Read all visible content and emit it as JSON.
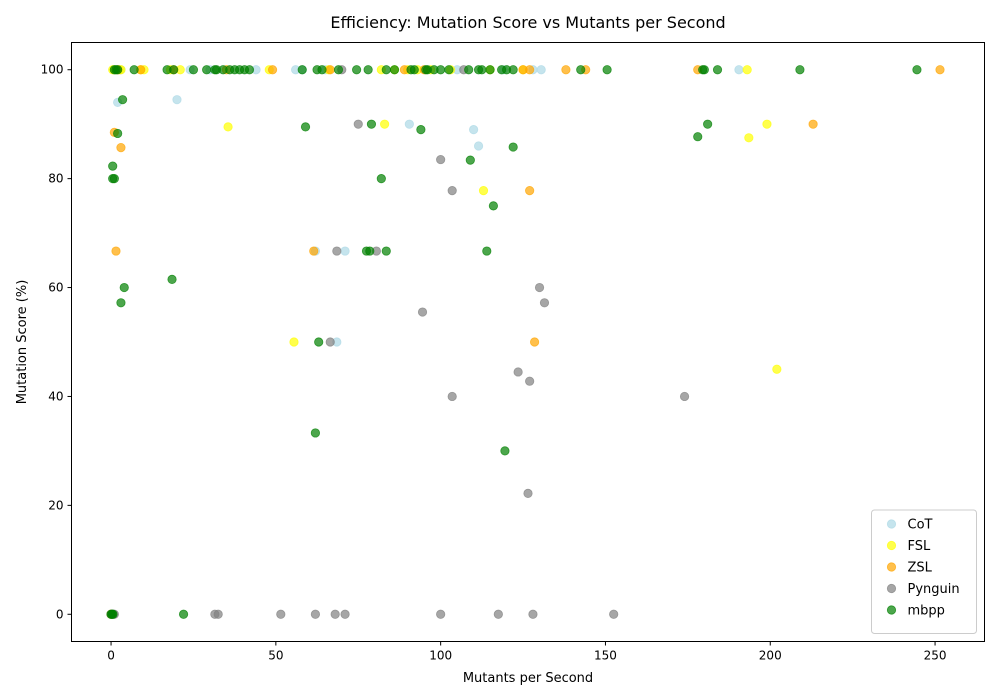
{
  "chart_data": {
    "type": "scatter",
    "title": "Efficiency: Mutation Score vs Mutants per Second",
    "xlabel": "Mutants per Second",
    "ylabel": "Mutation Score (%)",
    "xlim": [
      -12,
      265
    ],
    "ylim": [
      -5,
      105
    ],
    "x_ticks": [
      0,
      50,
      100,
      150,
      200,
      250
    ],
    "y_ticks": [
      0,
      20,
      40,
      60,
      80,
      100
    ],
    "grid": false,
    "legend_position": "bottom-right",
    "marker_alpha": 0.7,
    "series": [
      {
        "name": "CoT",
        "color": "#add8e6",
        "points": [
          [
            0,
            0
          ],
          [
            0.5,
            0
          ],
          [
            1,
            100
          ],
          [
            1.5,
            100
          ],
          [
            2,
            94
          ],
          [
            3,
            100
          ],
          [
            20,
            94.5
          ],
          [
            24,
            100
          ],
          [
            30,
            100
          ],
          [
            44,
            100
          ],
          [
            56,
            100
          ],
          [
            58,
            100
          ],
          [
            62,
            66.7
          ],
          [
            65,
            100
          ],
          [
            68.5,
            50
          ],
          [
            71,
            66.7
          ],
          [
            90.5,
            90
          ],
          [
            105,
            100
          ],
          [
            110,
            89
          ],
          [
            111.5,
            86
          ],
          [
            119,
            100
          ],
          [
            128,
            100
          ],
          [
            130.5,
            100
          ],
          [
            190.5,
            100
          ]
        ]
      },
      {
        "name": "FSL",
        "color": "#ffff00",
        "points": [
          [
            0,
            0
          ],
          [
            0.5,
            100
          ],
          [
            1,
            100
          ],
          [
            2.5,
            100
          ],
          [
            3,
            100
          ],
          [
            9,
            100
          ],
          [
            10,
            100
          ],
          [
            18,
            100
          ],
          [
            21,
            100
          ],
          [
            35.5,
            89.5
          ],
          [
            48,
            100
          ],
          [
            55.5,
            50
          ],
          [
            66,
            100
          ],
          [
            82,
            100
          ],
          [
            83,
            90
          ],
          [
            86,
            100
          ],
          [
            90,
            100
          ],
          [
            93,
            100
          ],
          [
            97,
            100
          ],
          [
            103,
            100
          ],
          [
            113,
            77.8
          ],
          [
            115,
            100
          ],
          [
            125,
            100
          ],
          [
            193,
            100
          ],
          [
            193.5,
            87.5
          ],
          [
            199,
            90
          ],
          [
            202,
            45
          ]
        ]
      },
      {
        "name": "ZSL",
        "color": "#ffa500",
        "points": [
          [
            0,
            0
          ],
          [
            1,
            88.5
          ],
          [
            1.5,
            66.7
          ],
          [
            2,
            100
          ],
          [
            3,
            85.7
          ],
          [
            9,
            100
          ],
          [
            19,
            100
          ],
          [
            35,
            100
          ],
          [
            49,
            100
          ],
          [
            61.5,
            66.7
          ],
          [
            66.5,
            100
          ],
          [
            89,
            100
          ],
          [
            95,
            100
          ],
          [
            125,
            100
          ],
          [
            127,
            77.8
          ],
          [
            127,
            100
          ],
          [
            128.5,
            50
          ],
          [
            138,
            100
          ],
          [
            144,
            100
          ],
          [
            178,
            100
          ],
          [
            213,
            90
          ],
          [
            251.5,
            100
          ]
        ]
      },
      {
        "name": "Pynguin",
        "color": "#808080",
        "points": [
          [
            0,
            0
          ],
          [
            0.5,
            0
          ],
          [
            1,
            0
          ],
          [
            31.5,
            0
          ],
          [
            32.5,
            0
          ],
          [
            51.5,
            0
          ],
          [
            62,
            0
          ],
          [
            66.5,
            50
          ],
          [
            68,
            0
          ],
          [
            68.5,
            66.7
          ],
          [
            70,
            100
          ],
          [
            71,
            0
          ],
          [
            75,
            90
          ],
          [
            80.5,
            66.7
          ],
          [
            94.5,
            55.5
          ],
          [
            100,
            83.5
          ],
          [
            100,
            0
          ],
          [
            103.5,
            77.8
          ],
          [
            103.5,
            40
          ],
          [
            107,
            100
          ],
          [
            117.5,
            0
          ],
          [
            123.5,
            44.5
          ],
          [
            126.5,
            22.2
          ],
          [
            127,
            42.8
          ],
          [
            128,
            0
          ],
          [
            130,
            60
          ],
          [
            131.5,
            57.2
          ],
          [
            152.5,
            0
          ],
          [
            174,
            40
          ]
        ]
      },
      {
        "name": "mbpp",
        "color": "#008000",
        "points": [
          [
            0,
            0
          ],
          [
            0.3,
            0
          ],
          [
            0.6,
            0
          ],
          [
            0.5,
            82.3
          ],
          [
            0.5,
            80
          ],
          [
            1,
            80
          ],
          [
            1,
            100
          ],
          [
            1.5,
            100
          ],
          [
            2,
            88.3
          ],
          [
            2,
            100
          ],
          [
            3,
            57.2
          ],
          [
            3.5,
            94.5
          ],
          [
            4,
            60
          ],
          [
            7,
            100
          ],
          [
            17,
            100
          ],
          [
            18.5,
            61.5
          ],
          [
            19,
            100
          ],
          [
            22,
            0
          ],
          [
            25,
            100
          ],
          [
            29,
            100
          ],
          [
            31.5,
            100
          ],
          [
            32,
            100
          ],
          [
            34,
            100
          ],
          [
            36,
            100
          ],
          [
            37.5,
            100
          ],
          [
            39,
            100
          ],
          [
            40.5,
            100
          ],
          [
            42,
            100
          ],
          [
            58,
            100
          ],
          [
            59,
            89.5
          ],
          [
            62,
            33.3
          ],
          [
            62.5,
            100
          ],
          [
            63,
            50
          ],
          [
            64,
            100
          ],
          [
            69,
            100
          ],
          [
            74.5,
            100
          ],
          [
            77.5,
            66.7
          ],
          [
            78,
            100
          ],
          [
            78.5,
            66.7
          ],
          [
            79,
            90
          ],
          [
            82,
            80
          ],
          [
            83.5,
            66.7
          ],
          [
            83.5,
            100
          ],
          [
            86,
            100
          ],
          [
            91,
            100
          ],
          [
            92,
            100
          ],
          [
            94,
            89
          ],
          [
            95.5,
            100
          ],
          [
            96,
            100
          ],
          [
            98,
            100
          ],
          [
            100,
            100
          ],
          [
            102.5,
            100
          ],
          [
            108.5,
            100
          ],
          [
            109,
            83.4
          ],
          [
            111.5,
            100
          ],
          [
            112.5,
            100
          ],
          [
            114,
            66.7
          ],
          [
            115,
            100
          ],
          [
            116,
            75
          ],
          [
            118.5,
            100
          ],
          [
            119.5,
            30
          ],
          [
            120,
            100
          ],
          [
            122,
            85.8
          ],
          [
            122,
            100
          ],
          [
            142.5,
            100
          ],
          [
            150.5,
            100
          ],
          [
            178,
            87.7
          ],
          [
            179.5,
            100
          ],
          [
            180,
            100
          ],
          [
            181,
            90
          ],
          [
            184,
            100
          ],
          [
            209,
            100
          ],
          [
            244.5,
            100
          ]
        ]
      }
    ]
  }
}
